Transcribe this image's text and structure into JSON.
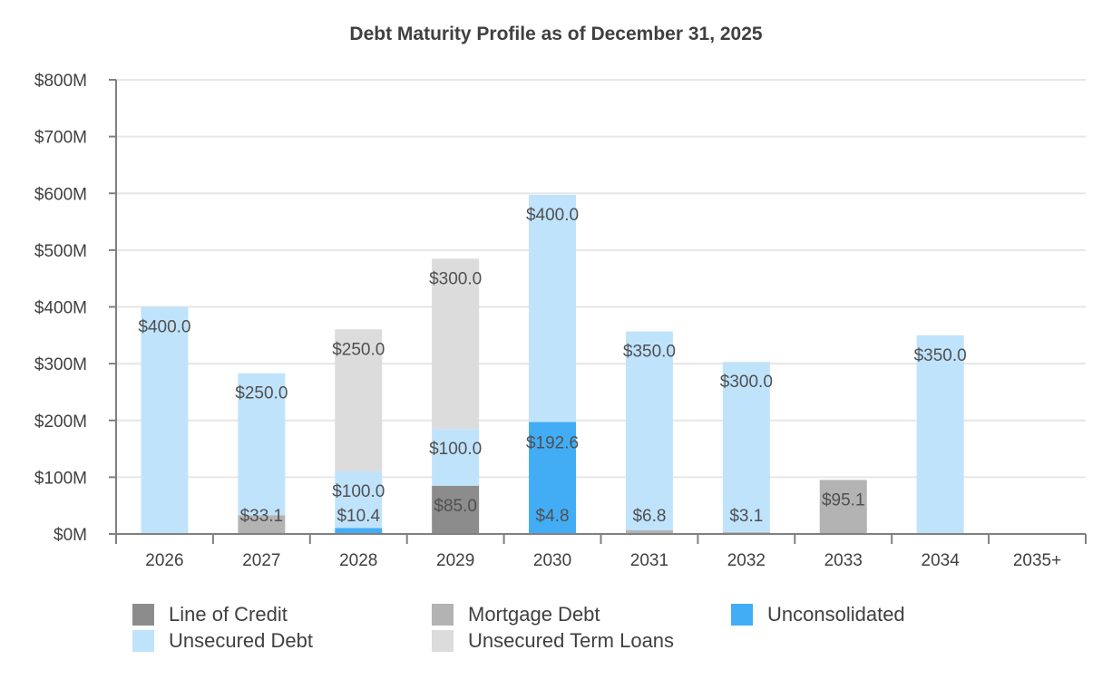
{
  "chart_data": {
    "type": "bar",
    "stacked": true,
    "title": "Debt Maturity Profile as of December 31, 2025",
    "categories": [
      "2026",
      "2027",
      "2028",
      "2029",
      "2030",
      "2031",
      "2032",
      "2033",
      "2034",
      "2035+"
    ],
    "y_ticks": [
      "$0M",
      "$100M",
      "$200M",
      "$300M",
      "$400M",
      "$500M",
      "$600M",
      "$700M",
      "$800M"
    ],
    "ylim": [
      0,
      800
    ],
    "grid": true,
    "legend_position": "bottom",
    "series": [
      {
        "name": "Line of Credit",
        "color": "#8c8c8c",
        "values": [
          0,
          0,
          0,
          85.0,
          0,
          0,
          0,
          0,
          0,
          0
        ],
        "labels": [
          "",
          "",
          "",
          "$85.0",
          "",
          "",
          "",
          "",
          "",
          ""
        ]
      },
      {
        "name": "Mortgage Debt",
        "color": "#b3b3b3",
        "values": [
          0,
          33.1,
          0,
          0,
          0,
          6.8,
          3.1,
          95.1,
          0,
          0
        ],
        "labels": [
          "",
          "$33.1",
          "",
          "",
          "",
          "$6.8",
          "$3.1",
          "$95.1",
          "",
          ""
        ]
      },
      {
        "name": "Unconsolidated",
        "color": "#42adf5",
        "values": [
          0,
          0,
          10.4,
          0,
          197.4,
          0,
          0,
          0,
          0,
          0
        ],
        "labels": [
          "",
          "",
          "$10.4",
          "",
          "$4.8|$192.6",
          "",
          "",
          "",
          "",
          ""
        ]
      },
      {
        "name": "Unsecured Debt",
        "color": "#c0e3fc",
        "values": [
          400.0,
          250.0,
          100.0,
          100.0,
          400.0,
          350.0,
          300.0,
          0,
          350.0,
          0
        ],
        "labels": [
          "$400.0",
          "$250.0",
          "$100.0",
          "$100.0",
          "$400.0",
          "$350.0",
          "$300.0",
          "",
          "$350.0",
          ""
        ]
      },
      {
        "name": "Unsecured Term Loans",
        "color": "#dcdcdc",
        "values": [
          0,
          0,
          250.0,
          300.0,
          0,
          0,
          0,
          0,
          0,
          0
        ],
        "labels": [
          "",
          "",
          "$250.0",
          "$300.0",
          "",
          "",
          "",
          "",
          "",
          ""
        ]
      }
    ]
  }
}
